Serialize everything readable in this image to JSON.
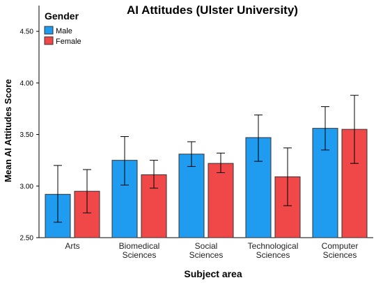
{
  "chart_data": {
    "type": "bar",
    "title": "AI Attitudes (Ulster University)",
    "xlabel": "Subject area",
    "ylabel": "Mean AI Attitudes Score",
    "ylim": [
      2.5,
      4.75
    ],
    "yticks": [
      "2.50",
      "3.00",
      "3.50",
      "4.00",
      "4.50"
    ],
    "ytick_values": [
      2.5,
      3.0,
      3.5,
      4.0,
      4.5
    ],
    "categories": [
      [
        "Arts"
      ],
      [
        "Biomedical",
        "Sciences"
      ],
      [
        "Social",
        "Sciences"
      ],
      [
        "Technological",
        "Sciences"
      ],
      [
        "Computer",
        "Sciences"
      ]
    ],
    "legend_title": "Gender",
    "legend_position": "top-left",
    "grid": false,
    "series": [
      {
        "name": "Male",
        "color": "#1f9bf0",
        "values": [
          2.92,
          3.25,
          3.31,
          3.47,
          3.56
        ],
        "error_low": [
          2.65,
          3.01,
          3.19,
          3.24,
          3.35
        ],
        "error_high": [
          3.2,
          3.48,
          3.43,
          3.69,
          3.77
        ]
      },
      {
        "name": "Female",
        "color": "#f04848",
        "values": [
          2.95,
          3.11,
          3.22,
          3.09,
          3.55
        ],
        "error_low": [
          2.74,
          2.98,
          3.13,
          2.81,
          3.22
        ],
        "error_high": [
          3.16,
          3.25,
          3.32,
          3.37,
          3.88
        ]
      }
    ]
  }
}
